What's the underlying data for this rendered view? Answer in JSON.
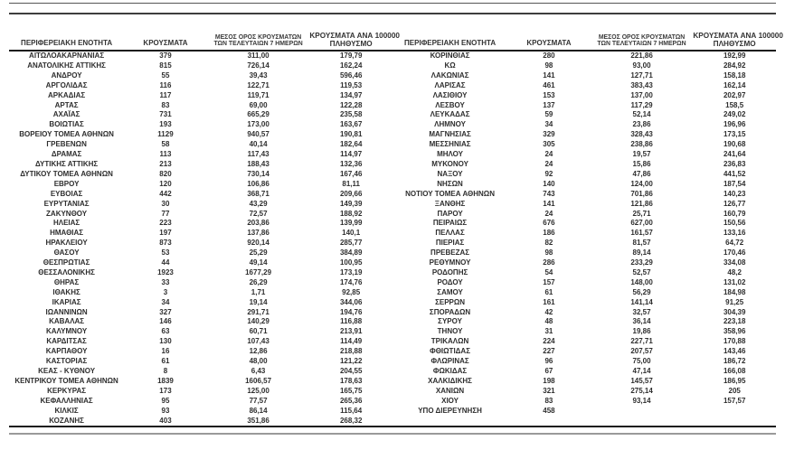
{
  "page": {
    "background": "#ffffff",
    "text_color": "#2e2e2e",
    "rule_dark": "#3d3d3d",
    "rule_gray": "#9a9a9a"
  },
  "table": {
    "headers": {
      "region": "ΠΕΡΙΦΕΡΕΙΑΚΗ ΕΝΟΤΗΤΑ",
      "cases": "ΚΡΟΥΣΜΑΤΑ",
      "avg7_line1": "ΜΕΣΟΣ ΟΡΟΣ ΚΡΟΥΣΜΑΤΩΝ",
      "avg7_line2": "ΤΩΝ ΤΕΛΕΥΤΑΙΩΝ 7 ΗΜΕΡΩΝ",
      "per100k_line1": "ΚΡΟΥΣΜΑΤΑ ΑΝΑ 100000",
      "per100k_line2": "ΠΛΗΘΥΣΜΟ"
    },
    "left_rows": [
      [
        "ΑΙΤΩΛΟΑΚΑΡΝΑΝΙΑΣ",
        "379",
        "311,00",
        "179,79"
      ],
      [
        "ΑΝΑΤΟΛΙΚΗΣ ΑΤΤΙΚΗΣ",
        "815",
        "726,14",
        "162,24"
      ],
      [
        "ΑΝΔΡΟΥ",
        "55",
        "39,43",
        "596,46"
      ],
      [
        "ΑΡΓΟΛΙΔΑΣ",
        "116",
        "122,71",
        "119,53"
      ],
      [
        "ΑΡΚΑΔΙΑΣ",
        "117",
        "119,71",
        "134,97"
      ],
      [
        "ΑΡΤΑΣ",
        "83",
        "69,00",
        "122,28"
      ],
      [
        "ΑΧΑΪΑΣ",
        "731",
        "665,29",
        "235,58"
      ],
      [
        "ΒΟΙΩΤΙΑΣ",
        "193",
        "173,00",
        "163,67"
      ],
      [
        "ΒΟΡΕΙΟΥ ΤΟΜΕΑ ΑΘΗΝΩΝ",
        "1129",
        "940,57",
        "190,81"
      ],
      [
        "ΓΡΕΒΕΝΩΝ",
        "58",
        "40,14",
        "182,64"
      ],
      [
        "ΔΡΑΜΑΣ",
        "113",
        "117,43",
        "114,97"
      ],
      [
        "ΔΥΤΙΚΗΣ ΑΤΤΙΚΗΣ",
        "213",
        "188,43",
        "132,36"
      ],
      [
        "ΔΥΤΙΚΟΥ ΤΟΜΕΑ ΑΘΗΝΩΝ",
        "820",
        "730,14",
        "167,46"
      ],
      [
        "ΕΒΡΟΥ",
        "120",
        "106,86",
        "81,11"
      ],
      [
        "ΕΥΒΟΙΑΣ",
        "442",
        "368,71",
        "209,66"
      ],
      [
        "ΕΥΡΥΤΑΝΙΑΣ",
        "30",
        "43,29",
        "149,39"
      ],
      [
        "ΖΑΚΥΝΘΟΥ",
        "77",
        "72,57",
        "188,92"
      ],
      [
        "ΗΛΕΙΑΣ",
        "223",
        "203,86",
        "139,99"
      ],
      [
        "ΗΜΑΘΙΑΣ",
        "197",
        "137,86",
        "140,1"
      ],
      [
        "ΗΡΑΚΛΕΙΟΥ",
        "873",
        "920,14",
        "285,77"
      ],
      [
        "ΘΑΣΟΥ",
        "53",
        "25,29",
        "384,89"
      ],
      [
        "ΘΕΣΠΡΩΤΙΑΣ",
        "44",
        "49,14",
        "100,95"
      ],
      [
        "ΘΕΣΣΑΛΟΝΙΚΗΣ",
        "1923",
        "1677,29",
        "173,19"
      ],
      [
        "ΘΗΡΑΣ",
        "33",
        "26,29",
        "174,76"
      ],
      [
        "ΙΘΑΚΗΣ",
        "3",
        "1,71",
        "92,85"
      ],
      [
        "ΙΚΑΡΙΑΣ",
        "34",
        "19,14",
        "344,06"
      ],
      [
        "ΙΩΑΝΝΙΝΩΝ",
        "327",
        "291,71",
        "194,76"
      ],
      [
        "ΚΑΒΑΛΑΣ",
        "146",
        "140,29",
        "116,88"
      ],
      [
        "ΚΑΛΥΜΝΟΥ",
        "63",
        "60,71",
        "213,91"
      ],
      [
        "ΚΑΡΔΙΤΣΑΣ",
        "130",
        "107,43",
        "114,49"
      ],
      [
        "ΚΑΡΠΑΘΟΥ",
        "16",
        "12,86",
        "218,88"
      ],
      [
        "ΚΑΣΤΟΡΙΑΣ",
        "61",
        "48,00",
        "121,22"
      ],
      [
        "ΚΕΑΣ - ΚΥΘΝΟΥ",
        "8",
        "6,43",
        "204,55"
      ],
      [
        "ΚΕΝΤΡΙΚΟΥ ΤΟΜΕΑ ΑΘΗΝΩΝ",
        "1839",
        "1606,57",
        "178,63"
      ],
      [
        "ΚΕΡΚΥΡΑΣ",
        "173",
        "125,00",
        "165,75"
      ],
      [
        "ΚΕΦΑΛΛΗΝΙΑΣ",
        "95",
        "77,57",
        "265,36"
      ],
      [
        "ΚΙΛΚΙΣ",
        "93",
        "86,14",
        "115,64"
      ],
      [
        "ΚΟΖΑΝΗΣ",
        "403",
        "351,86",
        "268,32"
      ]
    ],
    "right_rows": [
      [
        "ΚΟΡΙΝΘΙΑΣ",
        "280",
        "221,86",
        "192,99"
      ],
      [
        "ΚΩ",
        "98",
        "93,00",
        "284,92"
      ],
      [
        "ΛΑΚΩΝΙΑΣ",
        "141",
        "127,71",
        "158,18"
      ],
      [
        "ΛΑΡΙΣΑΣ",
        "461",
        "383,43",
        "162,14"
      ],
      [
        "ΛΑΣΙΘΙΟΥ",
        "153",
        "137,00",
        "202,97"
      ],
      [
        "ΛΕΣΒΟΥ",
        "137",
        "117,29",
        "158,5"
      ],
      [
        "ΛΕΥΚΑΔΑΣ",
        "59",
        "52,14",
        "249,02"
      ],
      [
        "ΛΗΜΝΟΥ",
        "34",
        "23,86",
        "196,96"
      ],
      [
        "ΜΑΓΝΗΣΙΑΣ",
        "329",
        "328,43",
        "173,15"
      ],
      [
        "ΜΕΣΣΗΝΙΑΣ",
        "305",
        "238,86",
        "190,68"
      ],
      [
        "ΜΗΛΟΥ",
        "24",
        "19,57",
        "241,64"
      ],
      [
        "ΜΥΚΟΝΟΥ",
        "24",
        "15,86",
        "236,83"
      ],
      [
        "ΝΑΞΟΥ",
        "92",
        "47,86",
        "441,52"
      ],
      [
        "ΝΗΣΩΝ",
        "140",
        "124,00",
        "187,54"
      ],
      [
        "ΝΟΤΙΟΥ ΤΟΜΕΑ ΑΘΗΝΩΝ",
        "743",
        "701,86",
        "140,23"
      ],
      [
        "ΞΑΝΘΗΣ",
        "141",
        "121,86",
        "126,77"
      ],
      [
        "ΠΑΡΟΥ",
        "24",
        "25,71",
        "160,79"
      ],
      [
        "ΠΕΙΡΑΙΩΣ",
        "676",
        "627,00",
        "150,56"
      ],
      [
        "ΠΕΛΛΑΣ",
        "186",
        "161,57",
        "133,16"
      ],
      [
        "ΠΙΕΡΙΑΣ",
        "82",
        "81,57",
        "64,72"
      ],
      [
        "ΠΡΕΒΕΖΑΣ",
        "98",
        "89,14",
        "170,46"
      ],
      [
        "ΡΕΘΥΜΝΟΥ",
        "286",
        "233,29",
        "334,08"
      ],
      [
        "ΡΟΔΟΠΗΣ",
        "54",
        "52,57",
        "48,2"
      ],
      [
        "ΡΟΔΟΥ",
        "157",
        "148,00",
        "131,02"
      ],
      [
        "ΣΑΜΟΥ",
        "61",
        "56,29",
        "184,98"
      ],
      [
        "ΣΕΡΡΩΝ",
        "161",
        "141,14",
        "91,25"
      ],
      [
        "ΣΠΟΡΑΔΩΝ",
        "42",
        "32,57",
        "304,39"
      ],
      [
        "ΣΥΡΟΥ",
        "48",
        "36,14",
        "223,18"
      ],
      [
        "ΤΗΝΟΥ",
        "31",
        "19,86",
        "358,96"
      ],
      [
        "ΤΡΙΚΑΛΩΝ",
        "224",
        "227,71",
        "170,88"
      ],
      [
        "ΦΘΙΩΤΙΔΑΣ",
        "227",
        "207,57",
        "143,46"
      ],
      [
        "ΦΛΩΡΙΝΑΣ",
        "96",
        "75,00",
        "186,72"
      ],
      [
        "ΦΩΚΙΔΑΣ",
        "67",
        "47,14",
        "166,08"
      ],
      [
        "ΧΑΛΚΙΔΙΚΗΣ",
        "198",
        "145,57",
        "186,95"
      ],
      [
        "ΧΑΝΙΩΝ",
        "321",
        "275,14",
        "205"
      ],
      [
        "ΧΙΟΥ",
        "83",
        "93,14",
        "157,57"
      ],
      [
        "ΥΠΟ ΔΙΕΡΕΥΝΗΣΗ",
        "458",
        "",
        ""
      ]
    ]
  }
}
